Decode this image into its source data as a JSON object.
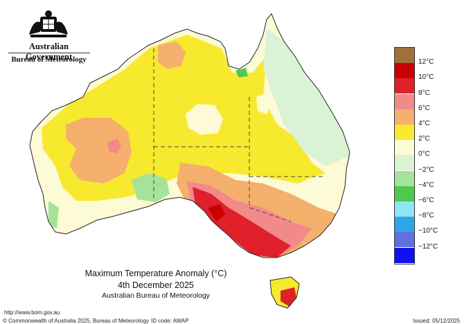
{
  "header": {
    "government": "Australian Government",
    "bureau": "Bureau of Meteorology"
  },
  "map": {
    "title_line1": "Maximum Temperature Anomaly (°C)",
    "title_line2": "4th December 2025",
    "title_line3": "Australian Bureau of Meteorology"
  },
  "legend": {
    "items": [
      {
        "label": "",
        "color": "#a0703a"
      },
      {
        "label": "12°C",
        "color": "#c80000"
      },
      {
        "label": "10°C",
        "color": "#e0202a"
      },
      {
        "label": "8°C",
        "color": "#f28a8a"
      },
      {
        "label": "6°C",
        "color": "#f4b06c"
      },
      {
        "label": "4°C",
        "color": "#f7ea2e"
      },
      {
        "label": "2°C",
        "color": "#fdfad6"
      },
      {
        "label": "0°C",
        "color": "#d9f3d4"
      },
      {
        "label": "−2°C",
        "color": "#a6e39a"
      },
      {
        "label": "−4°C",
        "color": "#50c850"
      },
      {
        "label": "−6°C",
        "color": "#8ee6f2"
      },
      {
        "label": "−8°C",
        "color": "#30a6e6"
      },
      {
        "label": "−10°C",
        "color": "#6070e0"
      },
      {
        "label": "−12°C",
        "color": "#1010f0"
      }
    ]
  },
  "footer": {
    "url": "http://www.bom.gov.au",
    "copyright": "© Commonwealth of Australia 2025, Bureau of Meteorology",
    "id_code": "ID code: AWAP",
    "issued": "Issued: 05/12/2025"
  }
}
